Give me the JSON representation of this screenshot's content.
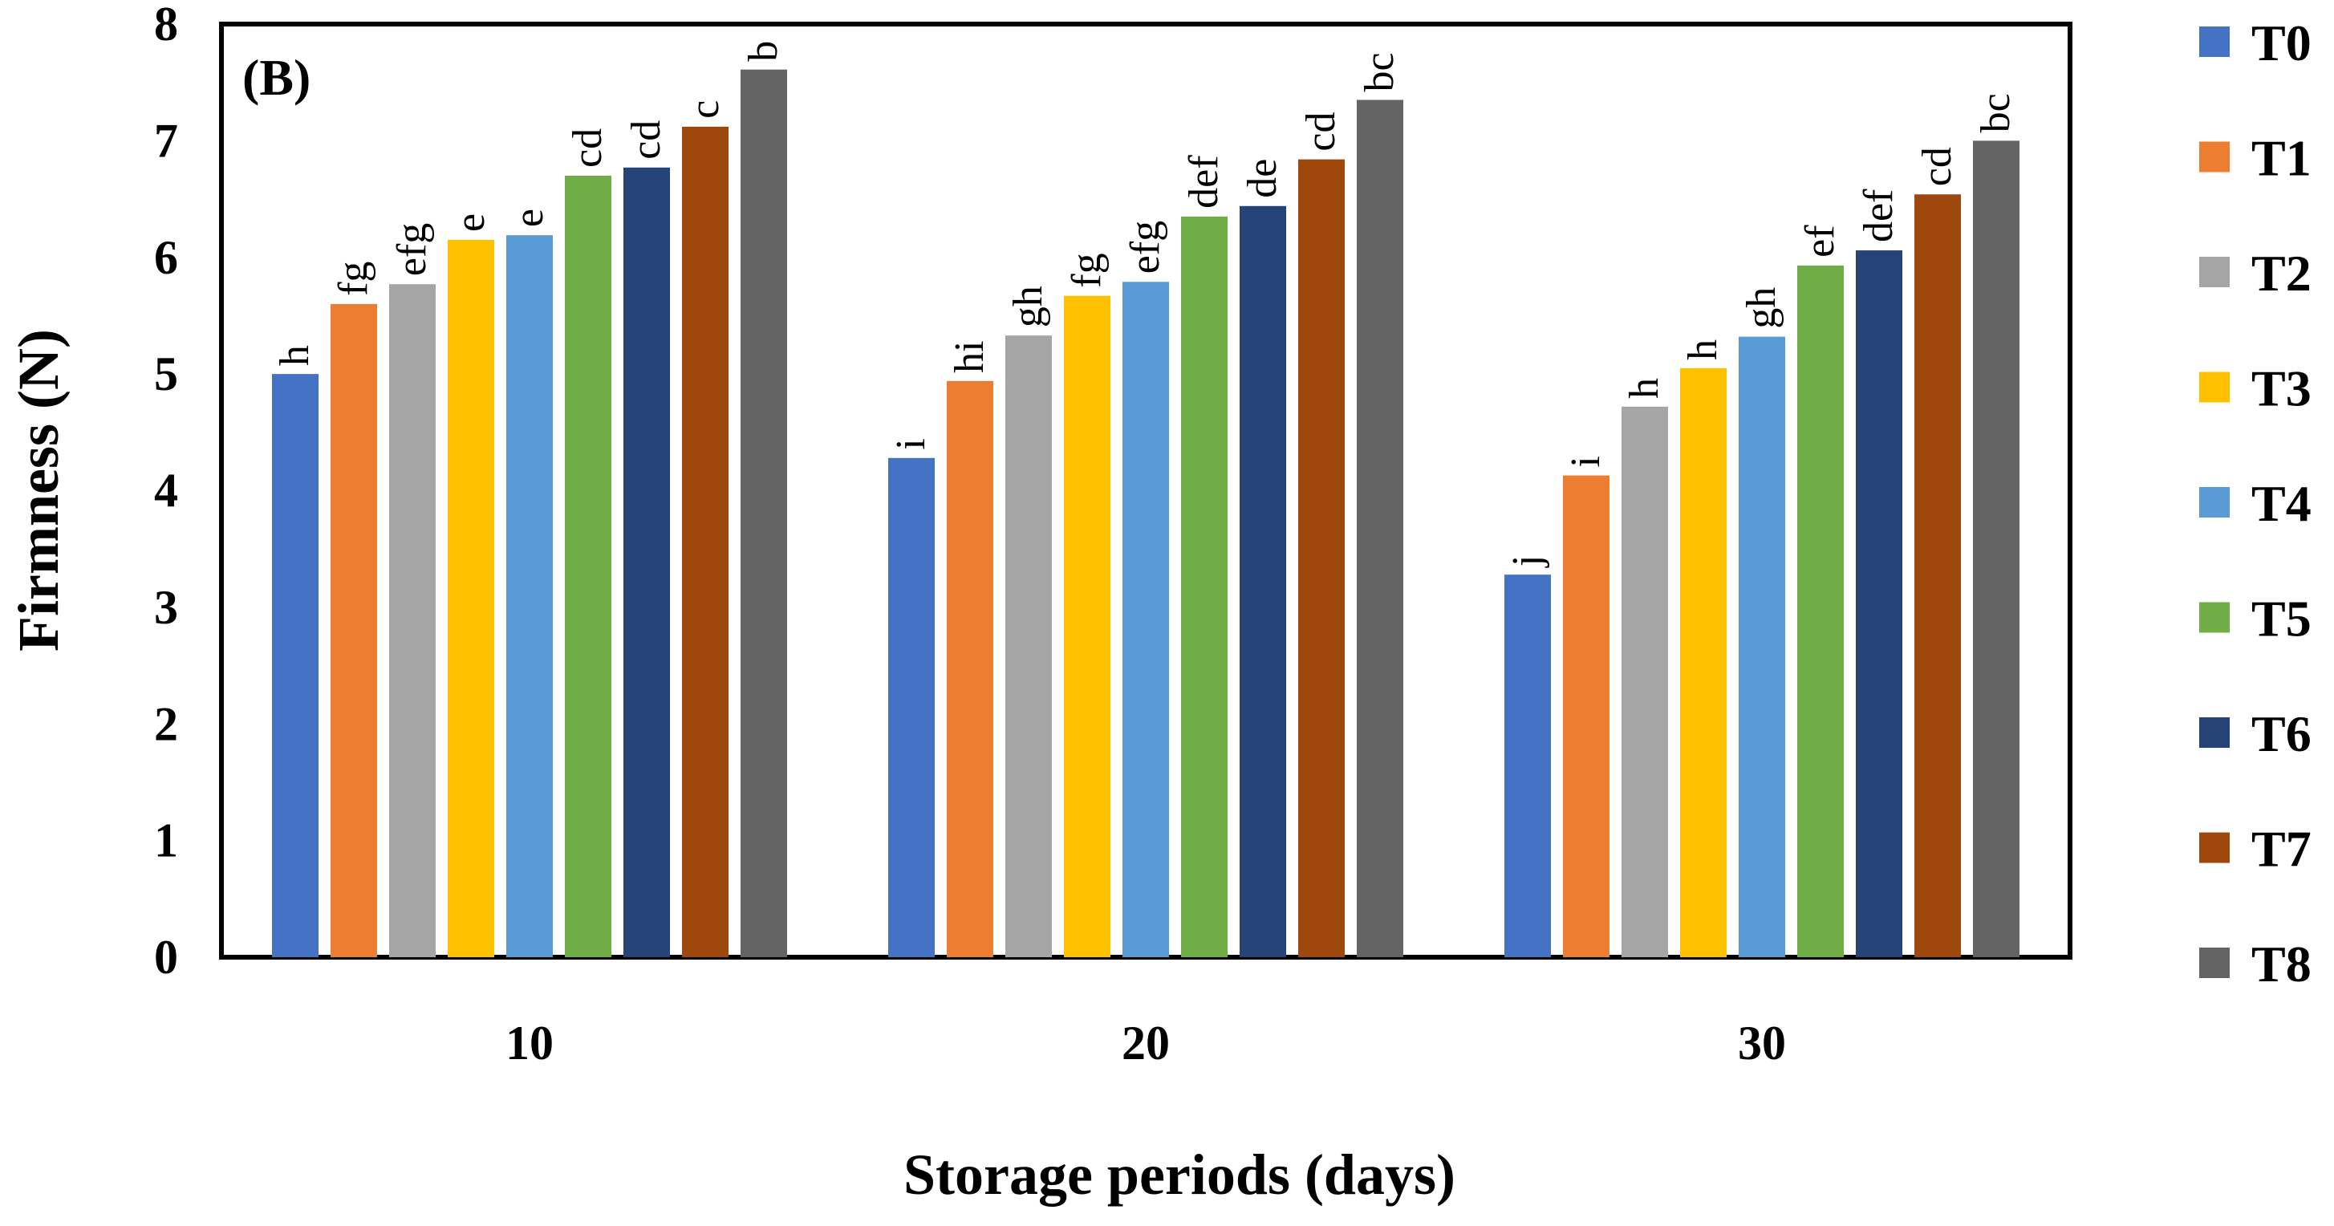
{
  "chart_data": {
    "type": "bar",
    "panel_label": "(B)",
    "title": "",
    "xlabel": "Storage periods (days)",
    "ylabel": "Firmness (N)",
    "ylim": [
      0,
      8
    ],
    "yticks": [
      "0",
      "1",
      "2",
      "3",
      "4",
      "5",
      "6",
      "7",
      "8"
    ],
    "grid": false,
    "legend_position": "right",
    "categories": [
      "10",
      "20",
      "30"
    ],
    "series": [
      {
        "name": "T0",
        "color": "#4472C4",
        "values": [
          5.0,
          4.28,
          3.28
        ],
        "labels": [
          "h",
          "i",
          "j"
        ]
      },
      {
        "name": "T1",
        "color": "#ED7D31",
        "values": [
          5.6,
          4.94,
          4.13
        ],
        "labels": [
          "fg",
          "hi",
          "i"
        ]
      },
      {
        "name": "T2",
        "color": "#A5A5A5",
        "values": [
          5.77,
          5.33,
          4.72
        ],
        "labels": [
          "efg",
          "gh",
          "h"
        ]
      },
      {
        "name": "T3",
        "color": "#FFC000",
        "values": [
          6.15,
          5.67,
          5.05
        ],
        "labels": [
          "e",
          "fg",
          "h"
        ]
      },
      {
        "name": "T4",
        "color": "#5B9BD5",
        "values": [
          6.19,
          5.79,
          5.32
        ],
        "labels": [
          "e",
          "efg",
          "gh"
        ]
      },
      {
        "name": "T5",
        "color": "#70AD47",
        "values": [
          6.7,
          6.35,
          5.93
        ],
        "labels": [
          "cd",
          "def",
          "ef"
        ]
      },
      {
        "name": "T6",
        "color": "#264478",
        "values": [
          6.77,
          6.44,
          6.06
        ],
        "labels": [
          "cd",
          "de",
          "def"
        ]
      },
      {
        "name": "T7",
        "color": "#9E480E",
        "values": [
          7.12,
          6.84,
          6.54
        ],
        "labels": [
          "c",
          "cd",
          "cd"
        ]
      },
      {
        "name": "T8",
        "color": "#636363",
        "values": [
          7.61,
          7.35,
          7.0
        ],
        "labels": [
          "b",
          "bc",
          "bc"
        ]
      }
    ]
  }
}
